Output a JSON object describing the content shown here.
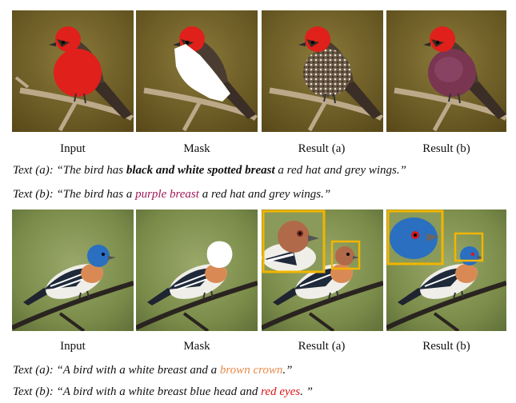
{
  "row1": {
    "labels": [
      "Input",
      "Mask",
      "Result (a)",
      "Result (b)"
    ],
    "caption_a": {
      "prefix": "Text (a):",
      "open": "“The bird has ",
      "highlight": "black and white spotted breast",
      "rest": " a red hat and grey wings.”",
      "highlight_color": "#111111"
    },
    "caption_b": {
      "prefix": "Text (b):",
      "open": "“The bird has a ",
      "highlight": "purple breast",
      "rest": " a red hat and grey wings.”",
      "highlight_color": "#a0185a"
    }
  },
  "row2": {
    "labels": [
      "Input",
      "Mask",
      "Result (a)",
      "Result (b)"
    ],
    "caption_a": {
      "prefix": "Text (a):",
      "open": "“A bird with a white breast and a ",
      "highlight": "brown crown",
      "rest": ".”",
      "highlight_color": "#e88a4a"
    },
    "caption_b": {
      "prefix": "Text (b):",
      "open": "“A bird with a white breast blue head and ",
      "highlight": "red eyes",
      "rest": ". ”",
      "highlight_color": "#d81818"
    }
  },
  "colors": {
    "zoom_box": "#f2b500",
    "bird1_red": "#e0201a",
    "bird2_blue": "#2a6fc0"
  }
}
